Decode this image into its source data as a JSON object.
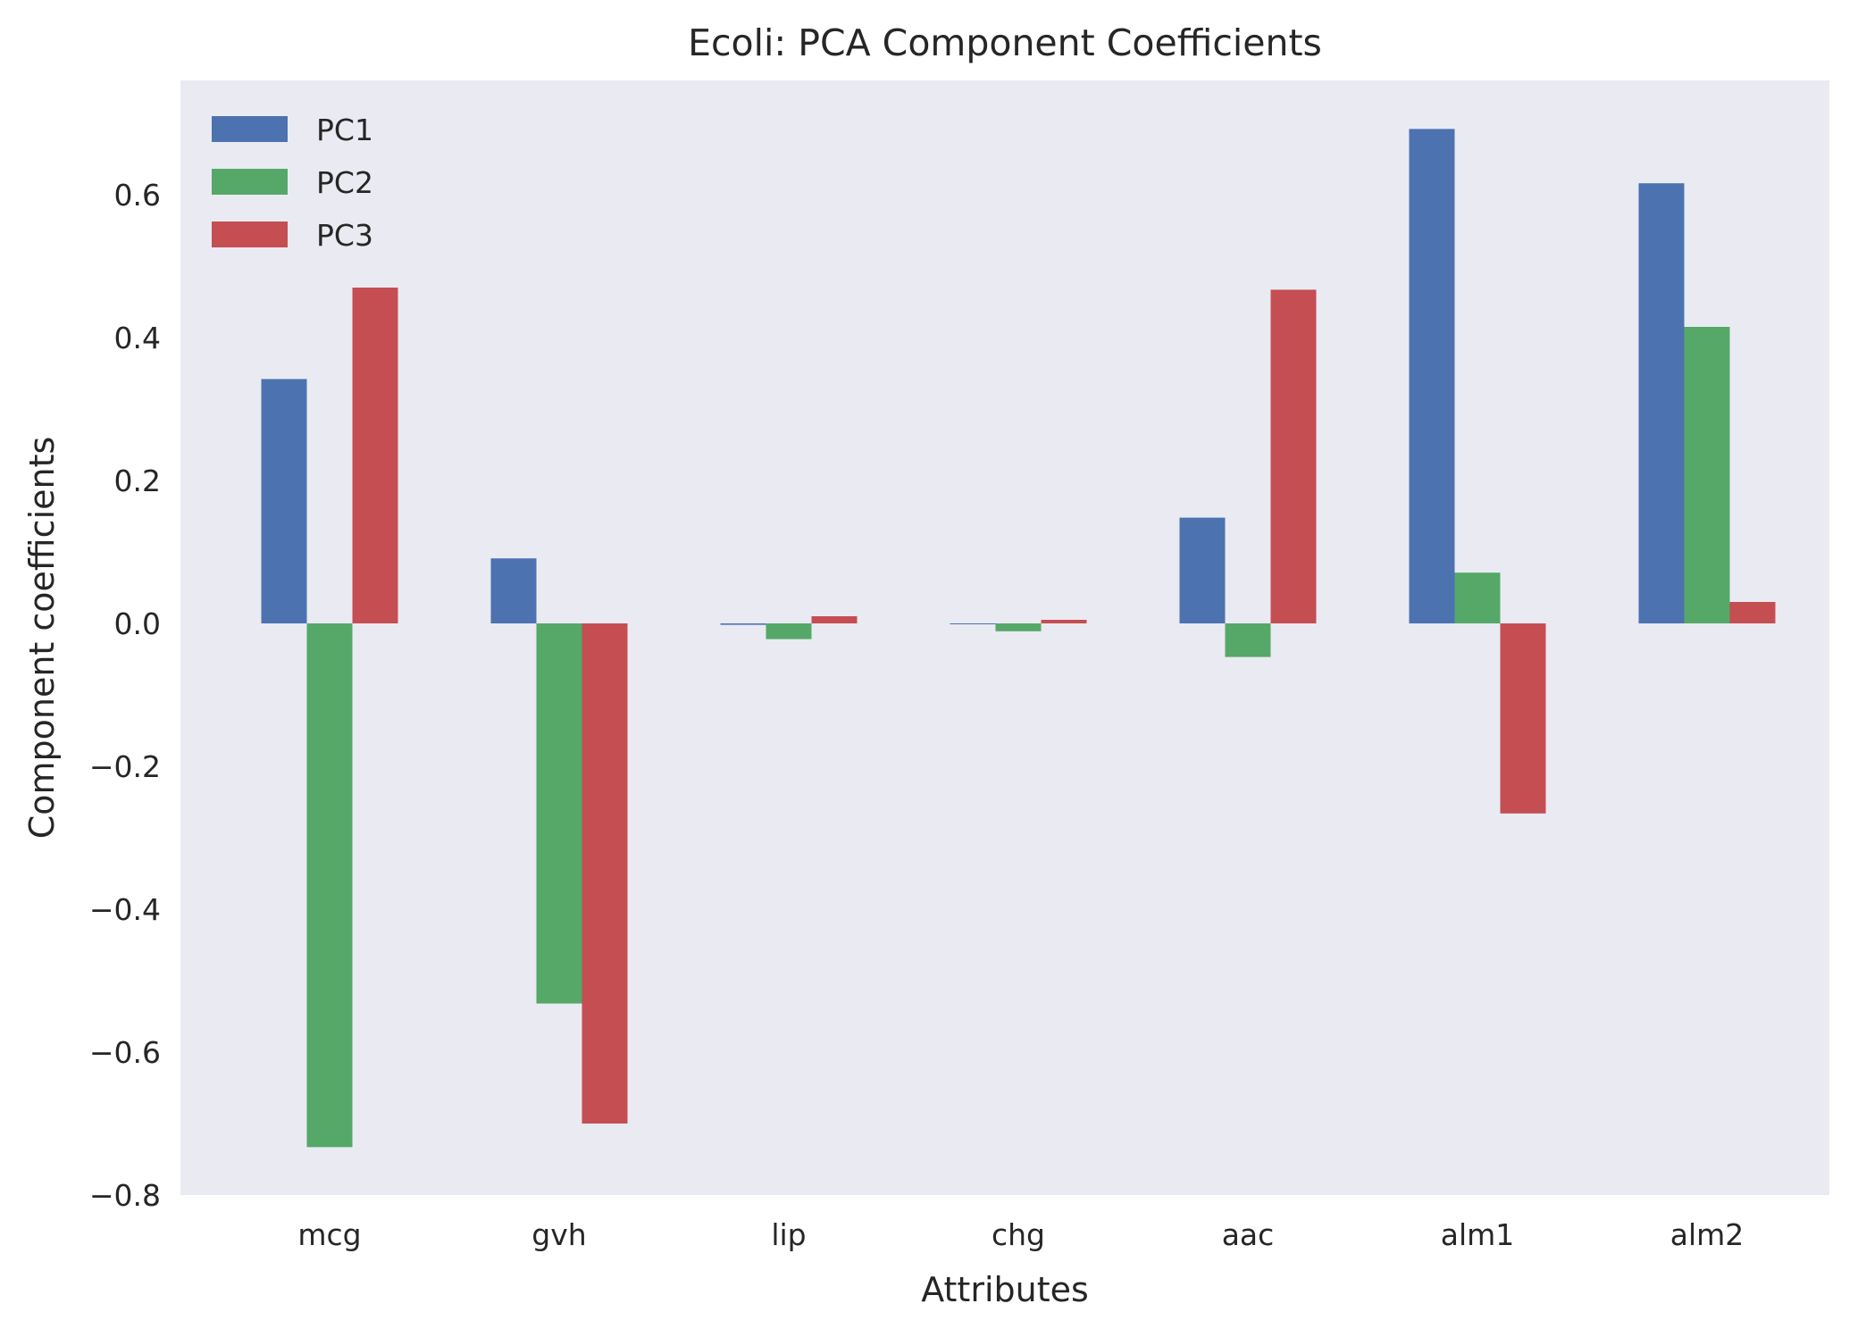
{
  "chart_data": {
    "type": "bar",
    "title": "Ecoli: PCA Component Coefficients",
    "xlabel": "Attributes",
    "ylabel": "Component coefficients",
    "categories": [
      "mcg",
      "gvh",
      "lip",
      "chg",
      "aac",
      "alm1",
      "alm2"
    ],
    "series": [
      {
        "name": "PC1",
        "color": "#4C72B0",
        "values": [
          0.342,
          0.091,
          -0.002,
          -0.001,
          0.148,
          0.692,
          0.616
        ]
      },
      {
        "name": "PC2",
        "color": "#55A868",
        "values": [
          -0.733,
          -0.532,
          -0.022,
          -0.011,
          -0.047,
          0.071,
          0.415
        ]
      },
      {
        "name": "PC3",
        "color": "#C44E52",
        "values": [
          0.47,
          -0.7,
          0.01,
          0.005,
          0.467,
          -0.266,
          0.03
        ]
      }
    ],
    "ylim": [
      -0.8,
      0.76
    ],
    "yticks": [
      "−0.8",
      "−0.6",
      "−0.4",
      "−0.2",
      "0.0",
      "0.2",
      "0.4",
      "0.6"
    ],
    "ytick_values": [
      -0.8,
      -0.6,
      -0.4,
      -0.2,
      0.0,
      0.2,
      0.4,
      0.6
    ],
    "grid": false,
    "legend_position": "top-left",
    "background_color": "#EAEAF2"
  }
}
